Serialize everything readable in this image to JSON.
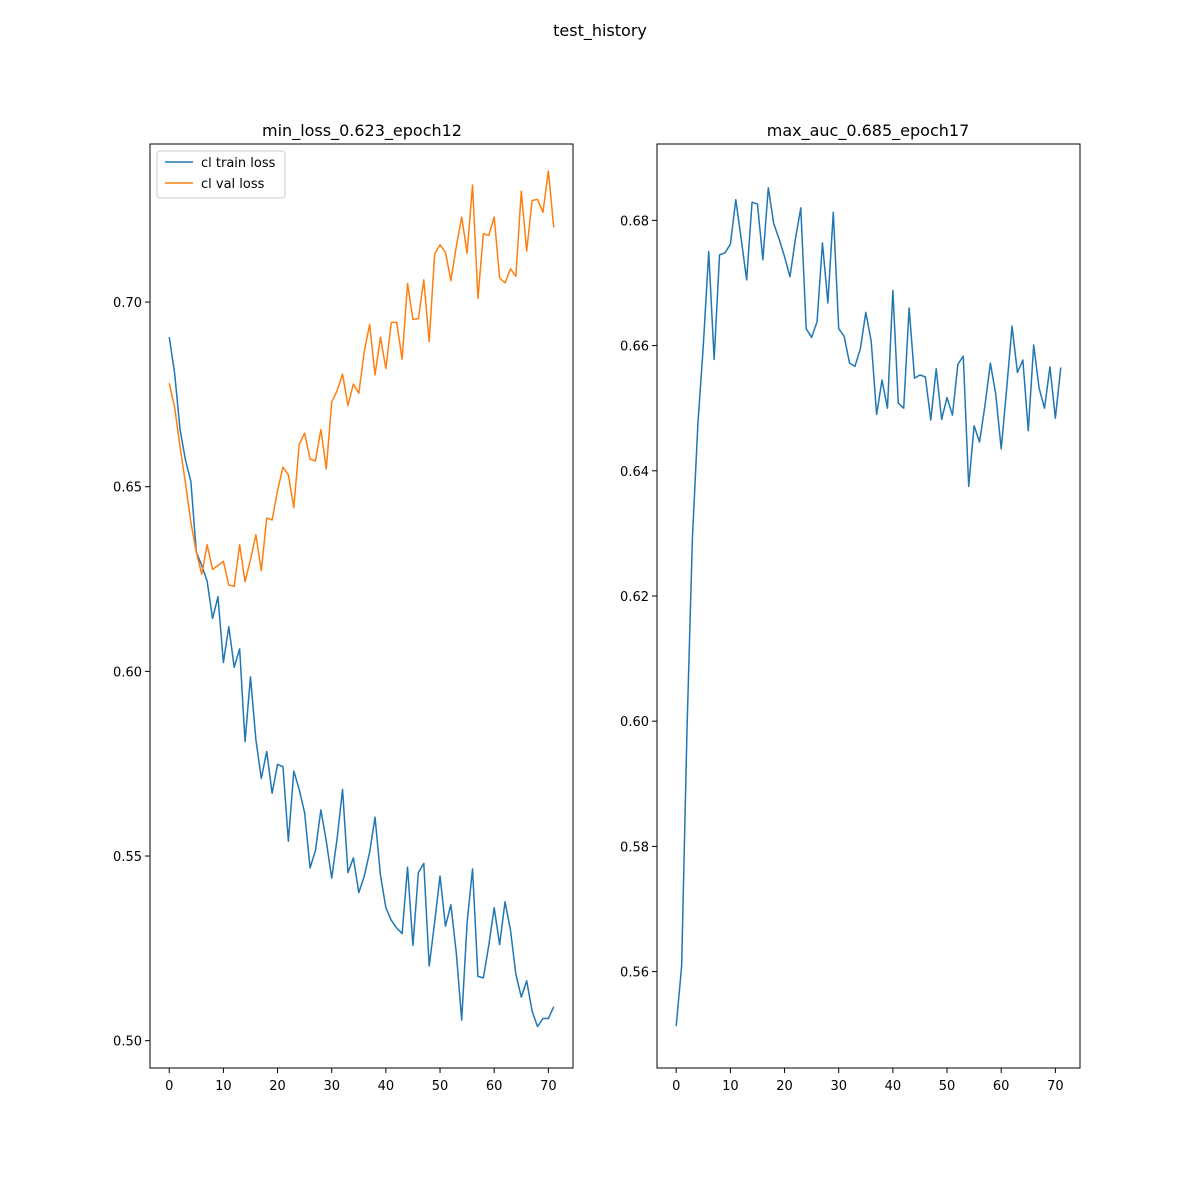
{
  "figure": {
    "suptitle": "test_history"
  },
  "chart_data": [
    {
      "type": "line",
      "title": "min_loss_0.623_epoch12",
      "xlabel": "",
      "ylabel": "",
      "xlim": [
        -3.55,
        74.55
      ],
      "ylim": [
        0.4926,
        0.7428
      ],
      "xticks": [
        0,
        10,
        20,
        30,
        40,
        50,
        60,
        70
      ],
      "yticks": [
        0.5,
        0.55,
        0.6,
        0.65,
        0.7
      ],
      "ytick_labels": [
        "0.50",
        "0.55",
        "0.60",
        "0.65",
        "0.70"
      ],
      "legend": {
        "position": "top-left",
        "entries": [
          "cl train loss",
          "cl val loss"
        ]
      },
      "grid": false,
      "series": [
        {
          "name": "cl train loss",
          "color": "#1f77b4",
          "values": [
            0.6905,
            0.6807,
            0.6655,
            0.6572,
            0.6514,
            0.6323,
            0.6287,
            0.6244,
            0.6143,
            0.6202,
            0.6024,
            0.6121,
            0.6011,
            0.6061,
            0.581,
            0.5985,
            0.5815,
            0.571,
            0.5783,
            0.567,
            0.5748,
            0.5742,
            0.554,
            0.573,
            0.568,
            0.5617,
            0.5468,
            0.5515,
            0.5625,
            0.554,
            0.544,
            0.5548,
            0.568,
            0.5455,
            0.5495,
            0.5401,
            0.5445,
            0.551,
            0.5605,
            0.5448,
            0.536,
            0.5326,
            0.5305,
            0.529,
            0.547,
            0.5258,
            0.5455,
            0.548,
            0.5202,
            0.532,
            0.5446,
            0.531,
            0.5368,
            0.5238,
            0.5056,
            0.532,
            0.5465,
            0.5174,
            0.517,
            0.5258,
            0.536,
            0.526,
            0.5376,
            0.53,
            0.518,
            0.5118,
            0.5162,
            0.508,
            0.5038,
            0.506,
            0.506,
            0.5092
          ]
        },
        {
          "name": "cl val loss",
          "color": "#ff7f0e",
          "values": [
            0.678,
            0.6715,
            0.6608,
            0.651,
            0.6403,
            0.6323,
            0.6263,
            0.6343,
            0.6276,
            0.6287,
            0.6298,
            0.6234,
            0.623,
            0.6343,
            0.6243,
            0.6302,
            0.637,
            0.6273,
            0.6415,
            0.641,
            0.649,
            0.6553,
            0.6532,
            0.6443,
            0.6615,
            0.6645,
            0.6575,
            0.657,
            0.6655,
            0.6548,
            0.673,
            0.676,
            0.6805,
            0.672,
            0.6778,
            0.6753,
            0.6865,
            0.694,
            0.6803,
            0.6905,
            0.682,
            0.6945,
            0.6945,
            0.6845,
            0.705,
            0.6953,
            0.6955,
            0.706,
            0.6893,
            0.713,
            0.7155,
            0.7135,
            0.7058,
            0.715,
            0.723,
            0.7132,
            0.7317,
            0.701,
            0.7185,
            0.718,
            0.723,
            0.7065,
            0.7052,
            0.709,
            0.707,
            0.73,
            0.7138,
            0.7275,
            0.7278,
            0.7243,
            0.7355,
            0.7202
          ]
        }
      ]
    },
    {
      "type": "line",
      "title": "max_auc_0.685_epoch17",
      "xlabel": "",
      "ylabel": "",
      "xlim": [
        -3.55,
        74.55
      ],
      "ylim": [
        0.5446,
        0.6922
      ],
      "xticks": [
        0,
        10,
        20,
        30,
        40,
        50,
        60,
        70
      ],
      "yticks": [
        0.56,
        0.58,
        0.6,
        0.62,
        0.64,
        0.66,
        0.68
      ],
      "ytick_labels": [
        "0.56",
        "0.58",
        "0.60",
        "0.62",
        "0.64",
        "0.66",
        "0.68"
      ],
      "grid": false,
      "series": [
        {
          "color": "#1f77b4",
          "values": [
            0.5513,
            0.5609,
            0.599,
            0.6295,
            0.6475,
            0.66,
            0.675,
            0.6578,
            0.6745,
            0.6748,
            0.6762,
            0.6833,
            0.677,
            0.6705,
            0.6829,
            0.6826,
            0.6737,
            0.6852,
            0.6795,
            0.677,
            0.6742,
            0.671,
            0.677,
            0.682,
            0.6627,
            0.6613,
            0.6638,
            0.6764,
            0.6668,
            0.6813,
            0.6627,
            0.6615,
            0.6572,
            0.6567,
            0.6595,
            0.6653,
            0.6607,
            0.649,
            0.6545,
            0.65,
            0.6688,
            0.6508,
            0.65,
            0.666,
            0.6548,
            0.6553,
            0.655,
            0.6481,
            0.6563,
            0.6482,
            0.6517,
            0.6489,
            0.657,
            0.6583,
            0.6375,
            0.6472,
            0.6446,
            0.6504,
            0.6572,
            0.6522,
            0.6435,
            0.653,
            0.6631,
            0.6557,
            0.6577,
            0.6464,
            0.6601,
            0.6532,
            0.65,
            0.6566,
            0.6484,
            0.6565
          ]
        }
      ]
    }
  ]
}
